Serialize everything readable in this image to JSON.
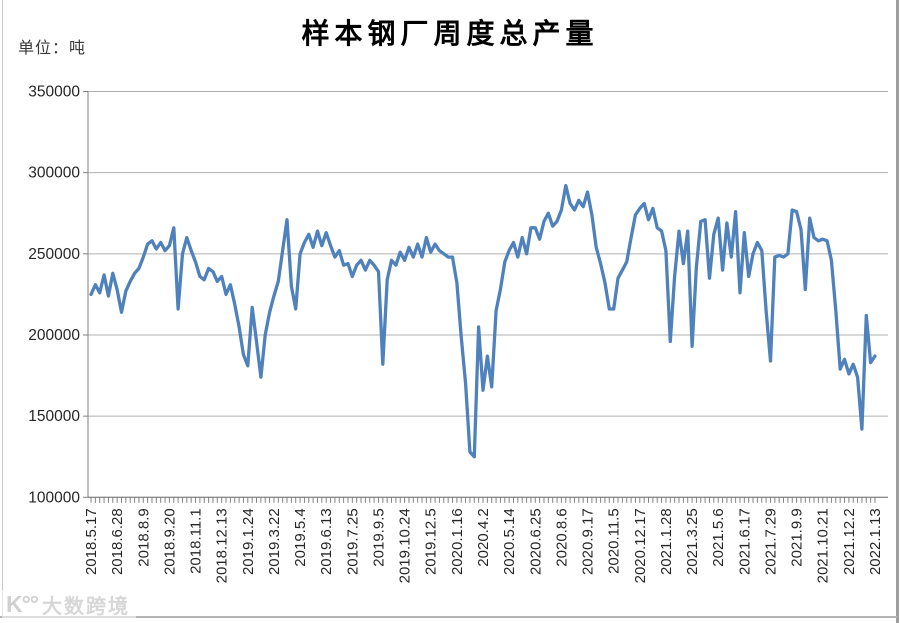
{
  "header": {
    "title": "样本钢厂周度总产量",
    "unit_label": "单位：吨"
  },
  "watermark": {
    "logo_text": "K°°",
    "brand_text": "大数跨境"
  },
  "chart_data": {
    "type": "line",
    "title": "样本钢厂周度总产量",
    "ylabel": "单位：吨",
    "xlabel": "",
    "ylim": [
      100000,
      350000
    ],
    "yticks": [
      350000,
      300000,
      250000,
      200000,
      150000,
      100000
    ],
    "grid": true,
    "legend": "none",
    "line_color": "#4F81BD",
    "axis_color": "#808080",
    "grid_color": "#b0b0b0",
    "tick_label_color": "#262626",
    "points_per_label": 6,
    "x_labels": [
      "2018.5.17",
      "2018.6.28",
      "2018.8.9",
      "2018.9.20",
      "2018.11.1",
      "2018.12.13",
      "2019.1.24",
      "2019.3.22",
      "2019.5.4",
      "2019.6.13",
      "2019.7.25",
      "2019.9.5",
      "2019.10.24",
      "2019.12.5",
      "2020.1.16",
      "2020.4.2",
      "2020.5.14",
      "2020.6.25",
      "2020.8.6",
      "2020.9.17",
      "2020.11.5",
      "2020.12.17",
      "2021.1.28",
      "2021.3.25",
      "2021.5.6",
      "2021.6.17",
      "2021.7.29",
      "2021.9.9",
      "2021.10.21",
      "2021.12.2",
      "2022.1.13"
    ],
    "values": [
      225000,
      231000,
      226000,
      237000,
      224000,
      238000,
      228000,
      214000,
      227000,
      233000,
      238000,
      241000,
      248000,
      256000,
      258000,
      253000,
      257000,
      252000,
      255000,
      266000,
      216000,
      250000,
      260000,
      252000,
      245000,
      236000,
      234000,
      241000,
      239000,
      233000,
      236000,
      225000,
      231000,
      219000,
      205000,
      188000,
      181000,
      217000,
      196000,
      174000,
      200000,
      214000,
      224000,
      233000,
      252000,
      271000,
      230000,
      216000,
      250000,
      257000,
      262000,
      254000,
      264000,
      255000,
      263000,
      255000,
      248000,
      252000,
      243000,
      244000,
      236000,
      243000,
      246000,
      240000,
      246000,
      243000,
      239000,
      182000,
      234000,
      246000,
      243000,
      251000,
      246000,
      254000,
      248000,
      256000,
      248000,
      260000,
      251000,
      256000,
      252000,
      250000,
      248000,
      248000,
      232000,
      199000,
      170000,
      128000,
      125000,
      205000,
      166000,
      187000,
      168000,
      215000,
      228000,
      245000,
      252000,
      257000,
      248000,
      260000,
      250000,
      266000,
      266000,
      259000,
      270000,
      275000,
      267000,
      270000,
      277000,
      292000,
      281000,
      277000,
      283000,
      279000,
      288000,
      274000,
      254000,
      244000,
      232000,
      216000,
      216000,
      235000,
      240000,
      245000,
      260000,
      274000,
      278000,
      281000,
      271000,
      278000,
      266000,
      264000,
      252000,
      196000,
      236000,
      264000,
      244000,
      264000,
      193000,
      242000,
      270000,
      271000,
      235000,
      262000,
      272000,
      240000,
      269000,
      248000,
      276000,
      226000,
      263000,
      236000,
      250000,
      257000,
      252000,
      215000,
      184000,
      248000,
      249000,
      248000,
      250000,
      277000,
      276000,
      265000,
      228000,
      272000,
      260000,
      258000,
      259000,
      258000,
      246000,
      215000,
      179000,
      185000,
      176000,
      182000,
      174000,
      142000,
      212000,
      183000,
      187000
    ]
  }
}
